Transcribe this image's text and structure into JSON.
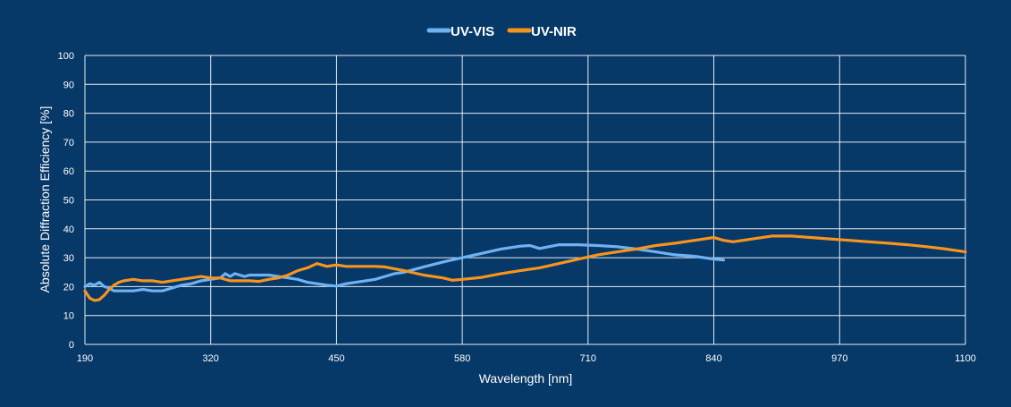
{
  "chart_data": {
    "type": "line",
    "xlabel": "Wavelength [nm]",
    "ylabel": "Absolute Diffraction Efficiency [%]",
    "xlim": [
      190,
      1100
    ],
    "ylim": [
      0,
      100
    ],
    "x_ticks": [
      190,
      320,
      450,
      580,
      710,
      840,
      970,
      1100
    ],
    "y_ticks": [
      0,
      10,
      20,
      30,
      40,
      50,
      60,
      70,
      80,
      90,
      100
    ],
    "grid": true,
    "legend_position": "top-center",
    "series": [
      {
        "name": "UV-VIS",
        "color": "#6fb2f2",
        "x": [
          190,
          195,
          200,
          205,
          210,
          215,
          220,
          230,
          240,
          250,
          260,
          270,
          280,
          290,
          300,
          310,
          320,
          330,
          335,
          340,
          345,
          350,
          355,
          360,
          370,
          380,
          390,
          400,
          410,
          420,
          430,
          440,
          450,
          460,
          470,
          480,
          490,
          500,
          510,
          520,
          540,
          560,
          580,
          600,
          620,
          640,
          650,
          660,
          680,
          700,
          720,
          740,
          760,
          780,
          800,
          820,
          840,
          850
        ],
        "y": [
          20,
          21,
          20.5,
          21.5,
          20,
          19.5,
          18.5,
          18.5,
          18.5,
          19,
          18.5,
          18.5,
          19.5,
          20.5,
          21,
          22,
          22.5,
          23,
          24.5,
          23.5,
          24.5,
          24,
          23.5,
          24,
          24,
          24,
          23.5,
          23,
          22.5,
          21.5,
          21,
          20.5,
          20.2,
          21,
          21.5,
          22,
          22.5,
          23.5,
          24.5,
          25,
          26.8,
          28.5,
          30,
          31.5,
          33,
          34,
          34.2,
          33.2,
          34.5,
          34.5,
          34.2,
          33.8,
          33,
          32,
          31,
          30.5,
          29.5,
          29.2
        ]
      },
      {
        "name": "UV-NIR",
        "color": "#f7941d",
        "x": [
          190,
          195,
          200,
          205,
          210,
          215,
          220,
          225,
          230,
          240,
          250,
          260,
          270,
          280,
          290,
          300,
          310,
          320,
          330,
          340,
          350,
          360,
          370,
          380,
          390,
          400,
          410,
          420,
          430,
          440,
          450,
          460,
          470,
          480,
          490,
          500,
          520,
          540,
          560,
          570,
          580,
          600,
          620,
          640,
          660,
          680,
          700,
          720,
          740,
          760,
          780,
          800,
          820,
          840,
          850,
          860,
          880,
          900,
          920,
          940,
          960,
          980,
          1000,
          1020,
          1040,
          1060,
          1080,
          1100
        ],
        "y": [
          18.5,
          16,
          15.2,
          15.5,
          17,
          19,
          20.5,
          21.5,
          22,
          22.5,
          22,
          22,
          21.5,
          22,
          22.5,
          23,
          23.5,
          23,
          23,
          22,
          22,
          22,
          21.8,
          22.5,
          23,
          24,
          25.5,
          26.5,
          28,
          27,
          27.5,
          27,
          27,
          27,
          27,
          26.8,
          25.5,
          24,
          23,
          22.2,
          22.5,
          23.2,
          24.5,
          25.5,
          26.5,
          28,
          29.5,
          31,
          32,
          33,
          34.2,
          35,
          36,
          37,
          36,
          35.5,
          36.5,
          37.5,
          37.5,
          37,
          36.5,
          36,
          35.5,
          35,
          34.5,
          33.8,
          33,
          32
        ]
      }
    ]
  }
}
